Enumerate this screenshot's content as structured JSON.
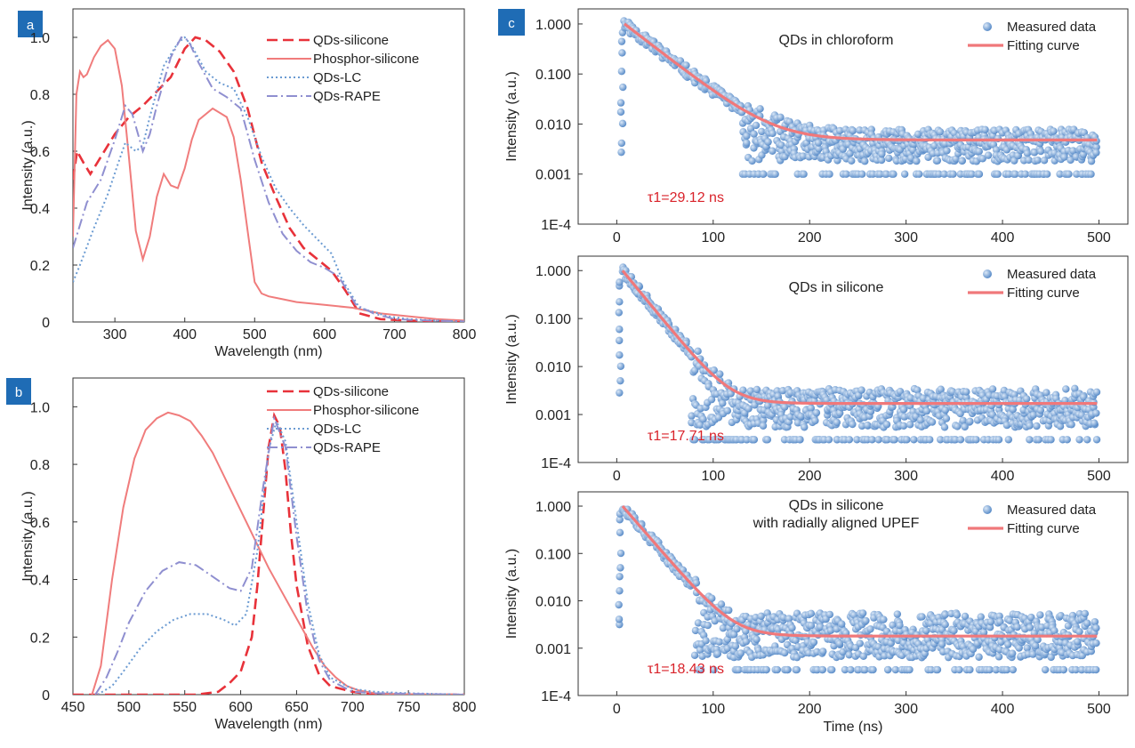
{
  "figure": {
    "panel_labels": [
      "a",
      "b",
      "c"
    ],
    "badge_color": "#1f6cb5"
  },
  "chart_data": [
    {
      "id": "a",
      "type": "line",
      "xlabel": "Wavelength (nm)",
      "ylabel": "Intensity (a.u.)",
      "xlim": [
        240,
        800
      ],
      "ylim": [
        0,
        1.1
      ],
      "xticks": [
        300,
        400,
        500,
        600,
        700,
        800
      ],
      "yticks": [
        0,
        0.2,
        0.4,
        0.6,
        0.8,
        1.0
      ],
      "ytick_labels": [
        "0",
        "0.2",
        "0.4",
        "0.6",
        "0.8",
        "1.0"
      ],
      "legend_placement": "top-right",
      "series": [
        {
          "name": "QDs-silicone",
          "color": "#e8323a",
          "style": "dashed",
          "x": [
            240,
            246,
            255,
            265,
            280,
            300,
            320,
            340,
            360,
            380,
            400,
            415,
            430,
            450,
            470,
            490,
            510,
            530,
            550,
            570,
            590,
            610,
            630,
            650,
            680,
            720,
            760,
            800
          ],
          "y": [
            0.5,
            0.6,
            0.56,
            0.52,
            0.58,
            0.66,
            0.72,
            0.76,
            0.81,
            0.86,
            0.96,
            1.0,
            0.99,
            0.95,
            0.88,
            0.75,
            0.56,
            0.44,
            0.33,
            0.26,
            0.22,
            0.18,
            0.11,
            0.03,
            0.01,
            0.005,
            0.003,
            0.002
          ]
        },
        {
          "name": "Phosphor-silicone",
          "color": "#f07c7c",
          "style": "solid",
          "x": [
            240,
            245,
            250,
            255,
            260,
            270,
            280,
            290,
            300,
            310,
            320,
            330,
            340,
            350,
            360,
            370,
            380,
            390,
            400,
            410,
            420,
            440,
            460,
            470,
            480,
            490,
            500,
            510,
            520,
            540,
            560,
            600,
            640,
            680,
            720,
            760,
            800
          ],
          "y": [
            0.3,
            0.8,
            0.88,
            0.86,
            0.87,
            0.93,
            0.97,
            0.99,
            0.96,
            0.83,
            0.58,
            0.32,
            0.22,
            0.3,
            0.44,
            0.52,
            0.48,
            0.47,
            0.54,
            0.64,
            0.71,
            0.75,
            0.72,
            0.65,
            0.5,
            0.32,
            0.14,
            0.1,
            0.09,
            0.08,
            0.07,
            0.06,
            0.05,
            0.03,
            0.02,
            0.01,
            0.005
          ]
        },
        {
          "name": "QDs-LC",
          "color": "#6b9bd2",
          "style": "dotted",
          "x": [
            240,
            250,
            270,
            290,
            305,
            315,
            330,
            340,
            350,
            370,
            390,
            400,
            410,
            430,
            450,
            470,
            490,
            510,
            530,
            550,
            570,
            590,
            610,
            625,
            650,
            690,
            720,
            760,
            800
          ],
          "y": [
            0.14,
            0.2,
            0.33,
            0.45,
            0.56,
            0.63,
            0.6,
            0.62,
            0.72,
            0.9,
            0.98,
            1.0,
            0.97,
            0.88,
            0.84,
            0.82,
            0.72,
            0.58,
            0.47,
            0.4,
            0.34,
            0.29,
            0.24,
            0.15,
            0.05,
            0.02,
            0.01,
            0.005,
            0.002
          ]
        },
        {
          "name": "QDs-RAPE",
          "color": "#8f8fd0",
          "style": "dashdot",
          "x": [
            240,
            260,
            280,
            300,
            315,
            325,
            340,
            350,
            360,
            380,
            395,
            405,
            420,
            440,
            460,
            480,
            500,
            520,
            540,
            560,
            580,
            600,
            620,
            645,
            670,
            700,
            750,
            800
          ],
          "y": [
            0.26,
            0.42,
            0.5,
            0.64,
            0.76,
            0.73,
            0.6,
            0.66,
            0.76,
            0.93,
            1.0,
            0.99,
            0.91,
            0.82,
            0.79,
            0.75,
            0.57,
            0.42,
            0.31,
            0.25,
            0.21,
            0.19,
            0.16,
            0.06,
            0.03,
            0.01,
            0.005,
            0.002
          ]
        }
      ]
    },
    {
      "id": "b",
      "type": "line",
      "xlabel": "Wavelength (nm)",
      "ylabel": "Intensity (a.u.)",
      "xlim": [
        450,
        800
      ],
      "ylim": [
        0,
        1.1
      ],
      "xticks": [
        450,
        500,
        550,
        600,
        650,
        700,
        750,
        800
      ],
      "yticks": [
        0,
        0.2,
        0.4,
        0.6,
        0.8,
        1.0
      ],
      "ytick_labels": [
        "0",
        "0.2",
        "0.4",
        "0.6",
        "0.8",
        "1.0"
      ],
      "legend_placement": "top-right",
      "series": [
        {
          "name": "QDs-silicone",
          "color": "#e8323a",
          "style": "dashed",
          "x": [
            450,
            500,
            560,
            580,
            590,
            600,
            610,
            615,
            620,
            625,
            630,
            635,
            640,
            645,
            650,
            660,
            670,
            680,
            700,
            720,
            800
          ],
          "y": [
            0.0,
            0.0,
            0.0,
            0.01,
            0.04,
            0.08,
            0.2,
            0.38,
            0.62,
            0.86,
            0.97,
            0.93,
            0.78,
            0.56,
            0.38,
            0.17,
            0.07,
            0.03,
            0.01,
            0.0,
            0.0
          ]
        },
        {
          "name": "Phosphor-silicone",
          "color": "#f07c7c",
          "style": "solid",
          "x": [
            467,
            475,
            485,
            495,
            505,
            515,
            525,
            535,
            545,
            555,
            565,
            575,
            585,
            595,
            605,
            615,
            625,
            635,
            645,
            655,
            665,
            675,
            685,
            695,
            705,
            720,
            740,
            800
          ],
          "y": [
            0.0,
            0.1,
            0.4,
            0.65,
            0.82,
            0.92,
            0.96,
            0.98,
            0.97,
            0.95,
            0.9,
            0.84,
            0.76,
            0.68,
            0.6,
            0.52,
            0.44,
            0.37,
            0.3,
            0.23,
            0.16,
            0.1,
            0.06,
            0.03,
            0.015,
            0.005,
            0.002,
            0.0
          ]
        },
        {
          "name": "QDs-LC",
          "color": "#6b9bd2",
          "style": "dotted",
          "x": [
            472,
            485,
            495,
            510,
            525,
            540,
            555,
            570,
            585,
            595,
            605,
            615,
            625,
            632,
            640,
            650,
            660,
            670,
            680,
            700,
            720,
            750,
            800
          ],
          "y": [
            0.0,
            0.03,
            0.08,
            0.16,
            0.22,
            0.26,
            0.28,
            0.28,
            0.26,
            0.24,
            0.28,
            0.5,
            0.85,
            0.95,
            0.88,
            0.6,
            0.32,
            0.14,
            0.06,
            0.02,
            0.01,
            0.005,
            0.0
          ]
        },
        {
          "name": "QDs-RAPE",
          "color": "#8f8fd0",
          "style": "dashdot",
          "x": [
            470,
            480,
            490,
            500,
            515,
            530,
            545,
            560,
            575,
            590,
            600,
            610,
            620,
            630,
            640,
            650,
            660,
            670,
            680,
            700,
            720,
            800
          ],
          "y": [
            0.0,
            0.06,
            0.15,
            0.25,
            0.36,
            0.43,
            0.46,
            0.45,
            0.41,
            0.37,
            0.36,
            0.44,
            0.72,
            0.96,
            0.86,
            0.55,
            0.28,
            0.12,
            0.05,
            0.01,
            0.005,
            0.0
          ]
        }
      ]
    },
    {
      "id": "c1",
      "type": "scatter",
      "title": "QDs in chloroform",
      "annotation": "τ1=29.12 ns",
      "xlabel": "",
      "ylabel": "Intensity (a.u.)",
      "xlim": [
        -40,
        530
      ],
      "ylim": [
        0.0001,
        2
      ],
      "yscale": "log",
      "xticks": [
        0,
        100,
        200,
        300,
        400,
        500
      ],
      "yticks": [
        0.0001,
        0.001,
        0.01,
        0.1,
        1
      ],
      "ytick_labels": [
        "1E-4",
        "0.001",
        "0.010",
        "0.100",
        "1.000"
      ],
      "legend_placement": "top-right",
      "series": [
        {
          "name": "Measured data",
          "color": "#5b8dc9",
          "type": "scatter",
          "model": {
            "t0": 8,
            "amplitude": 1.0,
            "tau": 29.12,
            "baseline": 0.0048,
            "noise_floor": 0.001,
            "noise_top": 0.0078
          }
        },
        {
          "name": "Fitting curve",
          "color": "#f0787a",
          "type": "line",
          "model": {
            "t0": 8,
            "amplitude": 1.0,
            "tau": 29.12,
            "baseline": 0.0048
          }
        }
      ]
    },
    {
      "id": "c2",
      "type": "scatter",
      "title": "QDs in silicone",
      "annotation": "τ1=17.71 ns",
      "xlabel": "",
      "ylabel": "Intensity (a.u.)",
      "xlim": [
        -40,
        530
      ],
      "ylim": [
        0.0001,
        2
      ],
      "yscale": "log",
      "xticks": [
        0,
        100,
        200,
        300,
        400,
        500
      ],
      "yticks": [
        0.0001,
        0.001,
        0.01,
        0.1,
        1
      ],
      "ytick_labels": [
        "1E-4",
        "0.001",
        "0.010",
        "0.100",
        "1.000"
      ],
      "legend_placement": "top-right",
      "series": [
        {
          "name": "Measured data",
          "color": "#5b8dc9",
          "type": "scatter",
          "model": {
            "t0": 6,
            "amplitude": 1.0,
            "tau": 17.71,
            "baseline": 0.0017,
            "noise_floor": 0.0003,
            "noise_top": 0.0035
          }
        },
        {
          "name": "Fitting curve",
          "color": "#f0787a",
          "type": "line",
          "model": {
            "t0": 6,
            "amplitude": 1.0,
            "tau": 17.71,
            "baseline": 0.0017
          }
        }
      ]
    },
    {
      "id": "c3",
      "type": "scatter",
      "title": "QDs in silicone",
      "subtitle": "with radially aligned UPEF",
      "annotation": "τ1=18.43 ns",
      "xlabel": "Time (ns)",
      "ylabel": "Intensity (a.u.)",
      "xlim": [
        -40,
        530
      ],
      "ylim": [
        0.0001,
        2
      ],
      "yscale": "log",
      "xticks": [
        0,
        100,
        200,
        300,
        400,
        500
      ],
      "yticks": [
        0.0001,
        0.001,
        0.01,
        0.1,
        1
      ],
      "ytick_labels": [
        "1E-4",
        "0.001",
        "0.010",
        "0.100",
        "1.000"
      ],
      "legend_placement": "top-right",
      "series": [
        {
          "name": "Measured data",
          "color": "#5b8dc9",
          "type": "scatter",
          "model": {
            "t0": 6,
            "amplitude": 1.0,
            "tau": 18.43,
            "baseline": 0.0018,
            "noise_floor": 0.00035,
            "noise_top": 0.0055
          }
        },
        {
          "name": "Fitting curve",
          "color": "#f0787a",
          "type": "line",
          "model": {
            "t0": 6,
            "amplitude": 1.0,
            "tau": 18.43,
            "baseline": 0.0018
          }
        }
      ]
    }
  ]
}
